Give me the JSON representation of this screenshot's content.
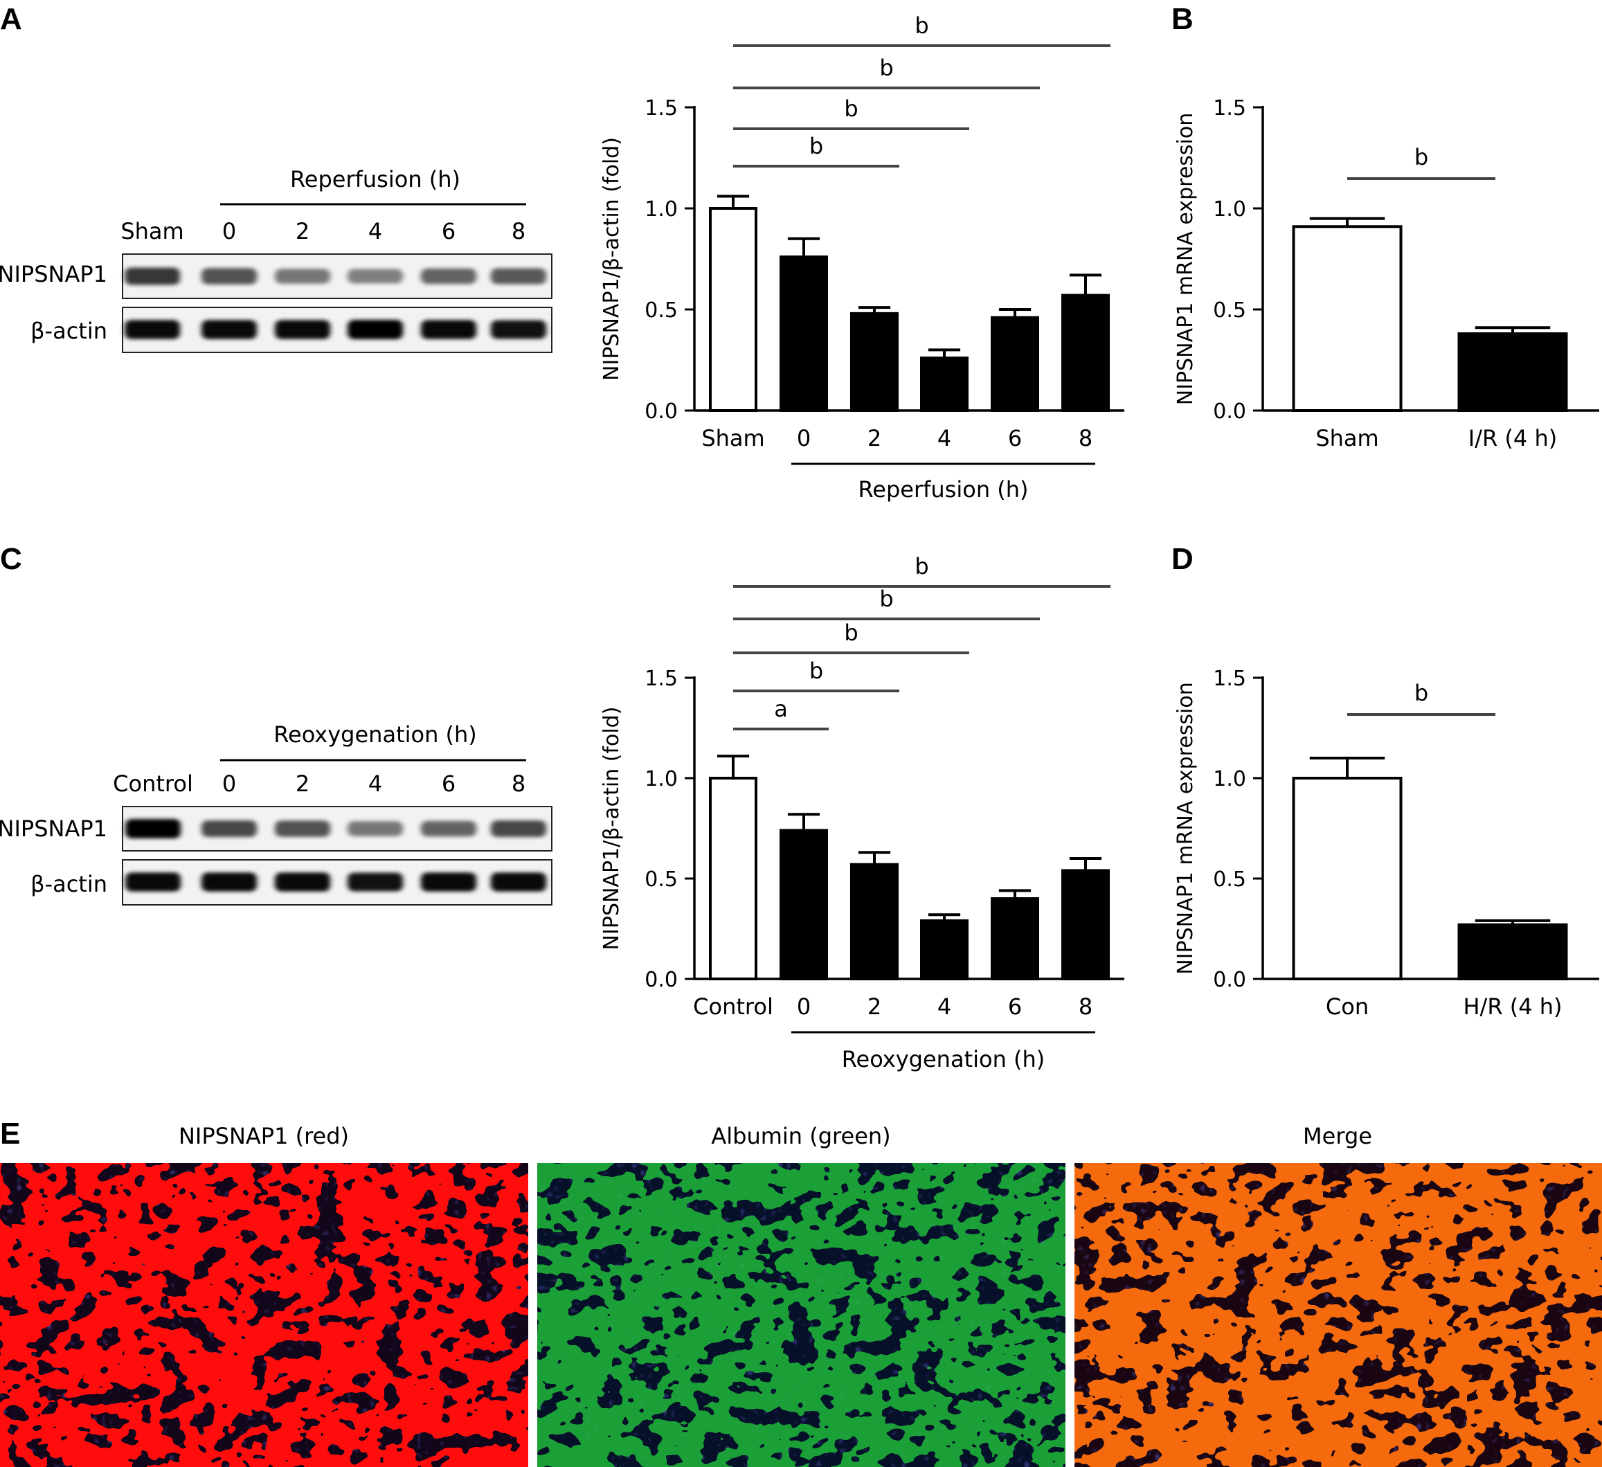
{
  "panels": {
    "A": "A",
    "B": "B",
    "C": "C",
    "D": "D",
    "E": "E"
  },
  "blots": [
    {
      "id": "A",
      "group_label": "Reperfusion (h)",
      "lanes": [
        "Sham",
        "0",
        "2",
        "4",
        "6",
        "8"
      ],
      "rows": [
        "NIPSNAP1",
        "β-actin"
      ],
      "band_intensity": [
        [
          0.7,
          0.55,
          0.35,
          0.3,
          0.45,
          0.5
        ],
        [
          0.95,
          0.95,
          0.95,
          1.0,
          0.95,
          0.9
        ]
      ]
    },
    {
      "id": "C",
      "group_label": "Reoxygenation (h)",
      "lanes": [
        "Control",
        "0",
        "2",
        "4",
        "6",
        "8"
      ],
      "rows": [
        "NIPSNAP1",
        "β-actin"
      ],
      "band_intensity": [
        [
          1.0,
          0.6,
          0.55,
          0.35,
          0.45,
          0.6
        ],
        [
          0.95,
          0.95,
          0.95,
          0.9,
          0.95,
          0.95
        ]
      ]
    }
  ],
  "chart_data": [
    {
      "id": "A-chart",
      "type": "bar",
      "categories": [
        "Sham",
        "0",
        "2",
        "4",
        "6",
        "8"
      ],
      "values": [
        1.0,
        0.76,
        0.48,
        0.26,
        0.46,
        0.57
      ],
      "errors": [
        0.06,
        0.09,
        0.03,
        0.04,
        0.04,
        0.1
      ],
      "fills": [
        "#ffffff",
        "#000000",
        "#000000",
        "#000000",
        "#000000",
        "#000000"
      ],
      "ylabel": "NIPSNAP1/β-actin (fold)",
      "ylim": [
        0,
        1.5
      ],
      "yticks": [
        "0.0",
        "0.5",
        "1.0",
        "1.5"
      ],
      "group_label": "Reperfusion (h)",
      "significance": [
        {
          "from": 0,
          "to": 2,
          "label": "b"
        },
        {
          "from": 0,
          "to": 3,
          "label": "b"
        },
        {
          "from": 0,
          "to": 4,
          "label": "b"
        },
        {
          "from": 0,
          "to": 5,
          "label": "b"
        }
      ]
    },
    {
      "id": "B-chart",
      "type": "bar",
      "categories": [
        "Sham",
        "I/R (4 h)"
      ],
      "values": [
        0.91,
        0.38
      ],
      "errors": [
        0.04,
        0.03
      ],
      "fills": [
        "#ffffff",
        "#000000"
      ],
      "ylabel": "NIPSNAP1 mRNA expression",
      "ylim": [
        0,
        1.5
      ],
      "yticks": [
        "0.0",
        "0.5",
        "1.0",
        "1.5"
      ],
      "significance": [
        {
          "from": 0,
          "to": 1,
          "label": "b"
        }
      ]
    },
    {
      "id": "C-chart",
      "type": "bar",
      "categories": [
        "Control",
        "0",
        "2",
        "4",
        "6",
        "8"
      ],
      "values": [
        1.0,
        0.74,
        0.57,
        0.29,
        0.4,
        0.54
      ],
      "errors": [
        0.11,
        0.08,
        0.06,
        0.03,
        0.04,
        0.06
      ],
      "fills": [
        "#ffffff",
        "#000000",
        "#000000",
        "#000000",
        "#000000",
        "#000000"
      ],
      "ylabel": "NIPSNAP1/β-actin (fold)",
      "ylim": [
        0,
        1.5
      ],
      "yticks": [
        "0.0",
        "0.5",
        "1.0",
        "1.5"
      ],
      "group_label": "Reoxygenation (h)",
      "significance": [
        {
          "from": 0,
          "to": 1,
          "label": "a"
        },
        {
          "from": 0,
          "to": 2,
          "label": "b"
        },
        {
          "from": 0,
          "to": 3,
          "label": "b"
        },
        {
          "from": 0,
          "to": 4,
          "label": "b"
        },
        {
          "from": 0,
          "to": 5,
          "label": "b"
        }
      ]
    },
    {
      "id": "D-chart",
      "type": "bar",
      "categories": [
        "Con",
        "H/R (4 h)"
      ],
      "values": [
        1.0,
        0.27
      ],
      "errors": [
        0.1,
        0.02
      ],
      "fills": [
        "#ffffff",
        "#000000"
      ],
      "ylabel": "NIPSNAP1 mRNA expression",
      "ylim": [
        0,
        1.5
      ],
      "yticks": [
        "0.0",
        "0.5",
        "1.0",
        "1.5"
      ],
      "significance": [
        {
          "from": 0,
          "to": 1,
          "label": "b"
        }
      ]
    }
  ],
  "images": [
    {
      "title": "NIPSNAP1 (red)",
      "channel": "red"
    },
    {
      "title": "Albumin (green)",
      "channel": "green"
    },
    {
      "title": "Merge",
      "channel": "merge"
    }
  ]
}
